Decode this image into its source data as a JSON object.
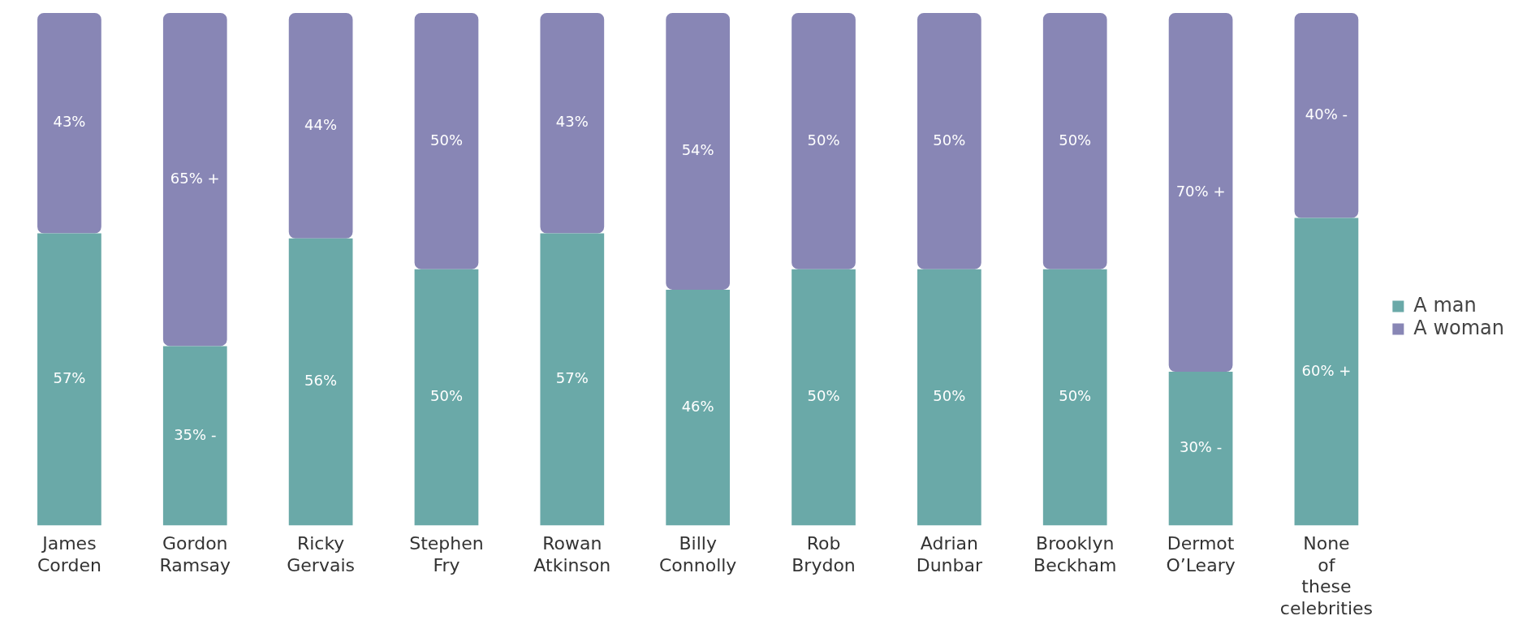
{
  "chart_data": {
    "type": "bar",
    "stacked": true,
    "categories": [
      "James Corden",
      "Gordon Ramsay",
      "Ricky Gervais",
      "Stephen Fry",
      "Rowan Atkinson",
      "Billy Connolly",
      "Rob Brydon",
      "Adrian Dunbar",
      "Brooklyn Beckham",
      "Dermot O’Leary",
      "None of these celebrities"
    ],
    "series": [
      {
        "name": "A man",
        "color": "#6aa9a8",
        "values": [
          57,
          35,
          56,
          50,
          57,
          46,
          50,
          50,
          50,
          30,
          60
        ],
        "value_labels": [
          "57%",
          "35% -",
          "56%",
          "50%",
          "57%",
          "46%",
          "50%",
          "50%",
          "50%",
          "30% -",
          "60% +"
        ]
      },
      {
        "name": "A woman",
        "color": "#8886b5",
        "values": [
          43,
          65,
          44,
          50,
          43,
          54,
          50,
          50,
          50,
          70,
          40
        ],
        "value_labels": [
          "43%",
          "65% +",
          "44%",
          "50%",
          "43%",
          "54%",
          "50%",
          "50%",
          "50%",
          "70% +",
          "40% -"
        ]
      }
    ],
    "grid": false,
    "legend": "right"
  }
}
